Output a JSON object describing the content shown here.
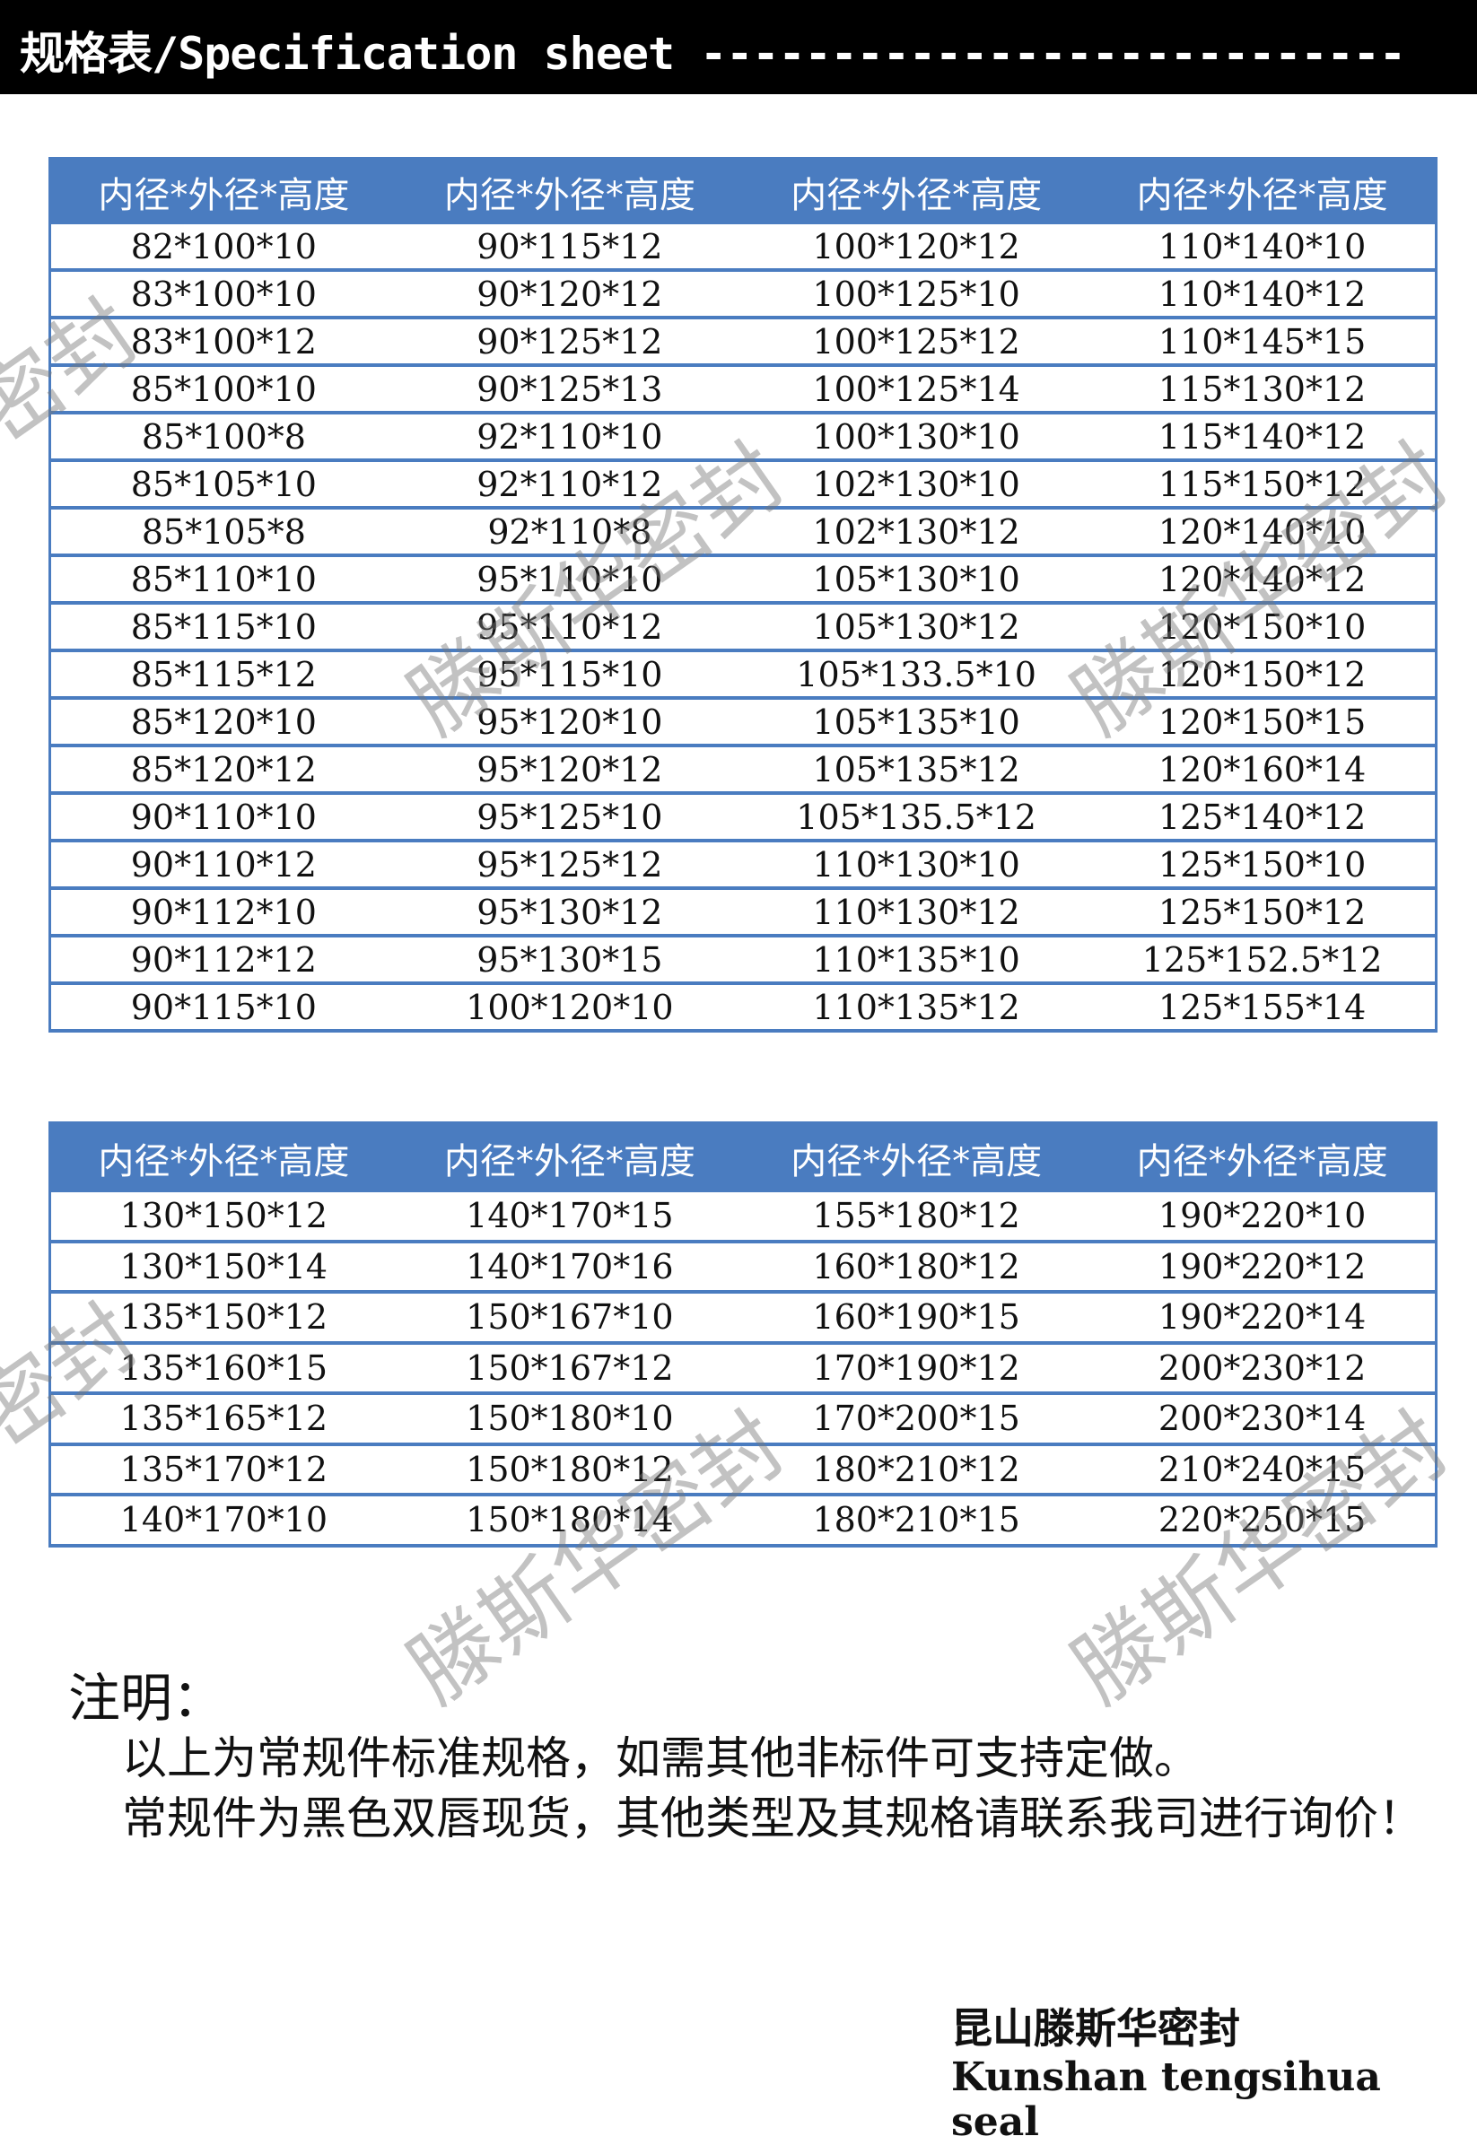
{
  "header": {
    "title": "规格表/Specification sheet ---------------------------"
  },
  "table1": {
    "headers": [
      "内径*外径*高度",
      "内径*外径*高度",
      "内径*外径*高度",
      "内径*外径*高度"
    ],
    "rows": [
      [
        "82*100*10",
        "90*115*12",
        "100*120*12",
        "110*140*10"
      ],
      [
        "83*100*10",
        "90*120*12",
        "100*125*10",
        "110*140*12"
      ],
      [
        "83*100*12",
        "90*125*12",
        "100*125*12",
        "110*145*15"
      ],
      [
        "85*100*10",
        "90*125*13",
        "100*125*14",
        "115*130*12"
      ],
      [
        "85*100*8",
        "92*110*10",
        "100*130*10",
        "115*140*12"
      ],
      [
        "85*105*10",
        "92*110*12",
        "102*130*10",
        "115*150*12"
      ],
      [
        "85*105*8",
        "92*110*8",
        "102*130*12",
        "120*140*10"
      ],
      [
        "85*110*10",
        "95*110*10",
        "105*130*10",
        "120*140*12"
      ],
      [
        "85*115*10",
        "95*110*12",
        "105*130*12",
        "120*150*10"
      ],
      [
        "85*115*12",
        "95*115*10",
        "105*133.5*10",
        "120*150*12"
      ],
      [
        "85*120*10",
        "95*120*10",
        "105*135*10",
        "120*150*15"
      ],
      [
        "85*120*12",
        "95*120*12",
        "105*135*12",
        "120*160*14"
      ],
      [
        "90*110*10",
        "95*125*10",
        "105*135.5*12",
        "125*140*12"
      ],
      [
        "90*110*12",
        "95*125*12",
        "110*130*10",
        "125*150*10"
      ],
      [
        "90*112*10",
        "95*130*12",
        "110*130*12",
        "125*150*12"
      ],
      [
        "90*112*12",
        "95*130*15",
        "110*135*10",
        "125*152.5*12"
      ],
      [
        "90*115*10",
        "100*120*10",
        "110*135*12",
        "125*155*14"
      ]
    ]
  },
  "table2": {
    "headers": [
      "内径*外径*高度",
      "内径*外径*高度",
      "内径*外径*高度",
      "内径*外径*高度"
    ],
    "rows": [
      [
        "130*150*12",
        "140*170*15",
        "155*180*12",
        "190*220*10"
      ],
      [
        "130*150*14",
        "140*170*16",
        "160*180*12",
        "190*220*12"
      ],
      [
        "135*150*12",
        "150*167*10",
        "160*190*15",
        "190*220*14"
      ],
      [
        "135*160*15",
        "150*167*12",
        "170*190*12",
        "200*230*12"
      ],
      [
        "135*165*12",
        "150*180*10",
        "170*200*15",
        "200*230*14"
      ],
      [
        "135*170*12",
        "150*180*12",
        "180*210*12",
        "210*240*15"
      ],
      [
        "140*170*10",
        "150*180*14",
        "180*210*15",
        "220*250*15"
      ]
    ]
  },
  "notes": {
    "title": "注明：",
    "line1": "以上为常规件标准规格，如需其他非标件可支持定做。",
    "line2": "常规件为黑色双唇现货，其他类型及其规格请联系我司进行询价！"
  },
  "company": {
    "name_cn": "昆山滕斯华密封",
    "name_en": "Kunshan tengsihua seal"
  },
  "watermark": "滕斯华密封",
  "colors": {
    "table_blue": "#4a7cc0",
    "topbar": "#000000"
  }
}
